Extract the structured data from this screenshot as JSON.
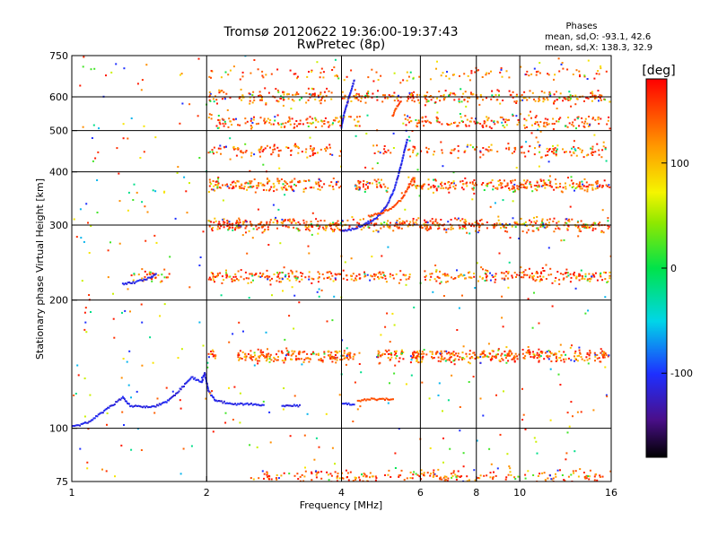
{
  "chart_data": {
    "type": "scatter",
    "title": "Tromsø 20120622 19:36:00-19:37:43",
    "subtitle": "RwPretec (8p)",
    "xlabel": "Frequency [MHz]",
    "ylabel": "Stationary phase Virtual Height [km]",
    "x_scale": "log",
    "y_scale": "log",
    "xlim": [
      1,
      16
    ],
    "ylim": [
      75,
      750
    ],
    "x_ticks": [
      1,
      2,
      4,
      6,
      8,
      10,
      16
    ],
    "x_tick_labels": [
      "1",
      "2",
      "4",
      "6",
      "8",
      "10",
      "16"
    ],
    "y_ticks": [
      75,
      100,
      200,
      300,
      400,
      500,
      600,
      750
    ],
    "y_tick_labels": [
      "75",
      "100",
      "200",
      "300",
      "400",
      "500",
      "600",
      "750"
    ],
    "grid": true,
    "legend": {
      "title": "Phases",
      "entries": [
        "mean, sd,O: -93.1, 42.6",
        "mean, sd,X: 138.3, 32.9"
      ],
      "placement": "top-right"
    },
    "colorbar": {
      "label": "[deg]",
      "range": [
        -180,
        180
      ],
      "ticks": [
        100,
        0,
        -100
      ],
      "tick_labels": [
        "100",
        "0",
        "-100"
      ],
      "colormap": "rainbow"
    },
    "traces": [
      {
        "desc": "O-mode E/F1 lower trace",
        "phase": -110,
        "points": [
          [
            1.0,
            101
          ],
          [
            1.05,
            102
          ],
          [
            1.1,
            104
          ],
          [
            1.3,
            118
          ],
          [
            1.35,
            113
          ],
          [
            1.45,
            112
          ],
          [
            1.55,
            113
          ],
          [
            1.62,
            115
          ],
          [
            1.7,
            120
          ],
          [
            1.78,
            126
          ],
          [
            1.85,
            132
          ],
          [
            1.95,
            128
          ],
          [
            1.98,
            135
          ],
          [
            2.02,
            122
          ],
          [
            2.1,
            116
          ],
          [
            2.3,
            114
          ],
          [
            2.5,
            114
          ],
          [
            2.7,
            113
          ]
        ]
      },
      {
        "desc": "O-mode short segment",
        "phase": -110,
        "points": [
          [
            2.95,
            113
          ],
          [
            3.05,
            113
          ],
          [
            3.25,
            113
          ]
        ]
      },
      {
        "desc": "O-mode segment near 4 MHz",
        "phase": -110,
        "points": [
          [
            4.02,
            114
          ],
          [
            4.15,
            114
          ],
          [
            4.3,
            114
          ]
        ]
      },
      {
        "desc": "X-mode segment near 4.5 MHz",
        "phase": 150,
        "points": [
          [
            4.35,
            116
          ],
          [
            4.6,
            117
          ],
          [
            4.9,
            117
          ],
          [
            5.25,
            117
          ]
        ]
      },
      {
        "desc": "O-mode F2 trace",
        "phase": -110,
        "points": [
          [
            4.0,
            290
          ],
          [
            4.2,
            293
          ],
          [
            4.4,
            298
          ],
          [
            4.7,
            307
          ],
          [
            4.9,
            320
          ],
          [
            5.1,
            340
          ],
          [
            5.25,
            365
          ],
          [
            5.35,
            390
          ],
          [
            5.45,
            420
          ],
          [
            5.55,
            455
          ],
          [
            5.62,
            480
          ]
        ]
      },
      {
        "desc": "O-mode high trace",
        "phase": -110,
        "points": [
          [
            4.0,
            510
          ],
          [
            4.05,
            545
          ],
          [
            4.12,
            580
          ],
          [
            4.2,
            620
          ],
          [
            4.28,
            660
          ]
        ]
      },
      {
        "desc": "X-mode F2 trace",
        "phase": 150,
        "points": [
          [
            4.6,
            315
          ],
          [
            4.9,
            320
          ],
          [
            5.2,
            330
          ],
          [
            5.45,
            345
          ],
          [
            5.65,
            368
          ],
          [
            5.8,
            390
          ]
        ]
      },
      {
        "desc": "X-mode high trace",
        "phase": 150,
        "points": [
          [
            5.2,
            540
          ],
          [
            5.3,
            565
          ],
          [
            5.45,
            590
          ]
        ]
      },
      {
        "desc": "O-mode low trace near 1.5 MHz",
        "phase": -110,
        "points": [
          [
            1.3,
            218
          ],
          [
            1.38,
            220
          ],
          [
            1.5,
            226
          ],
          [
            1.55,
            232
          ]
        ]
      }
    ],
    "bands": [
      {
        "height": 680,
        "fmin": 2.02,
        "fmax": 15.9,
        "gaps": [
          [
            4.15,
            4.45
          ],
          [
            5.0,
            5.55
          ]
        ],
        "density": 120,
        "phase": 160
      },
      {
        "height": 600,
        "fmin": 2.02,
        "fmax": 15.9,
        "gaps": [
          [
            3.85,
            4.0
          ]
        ],
        "density": 360,
        "phase": 160
      },
      {
        "height": 525,
        "fmin": 2.02,
        "fmax": 15.9,
        "gaps": [
          [
            4.45,
            5.5
          ]
        ],
        "density": 320,
        "phase": 160
      },
      {
        "height": 450,
        "fmin": 2.02,
        "fmax": 15.9,
        "gaps": [
          [
            4.0,
            4.6
          ],
          [
            5.2,
            5.6
          ]
        ],
        "density": 260,
        "phase": 160
      },
      {
        "height": 372,
        "fmin": 2.02,
        "fmax": 15.9,
        "gaps": [
          [
            4.0,
            4.3
          ],
          [
            5.1,
            5.6
          ]
        ],
        "density": 480,
        "phase": 160
      },
      {
        "height": 300,
        "fmin": 2.02,
        "fmax": 15.9,
        "gaps": [],
        "density": 520,
        "phase": 160
      },
      {
        "height": 228,
        "fmin": 1.35,
        "fmax": 15.9,
        "gaps": [
          [
            1.7,
            2.02
          ],
          [
            5.7,
            6.1
          ]
        ],
        "density": 460,
        "phase": 160
      },
      {
        "height": 148,
        "fmin": 2.02,
        "fmax": 15.9,
        "gaps": [
          [
            2.1,
            2.35
          ],
          [
            4.3,
            4.75
          ],
          [
            5.5,
            5.7
          ]
        ],
        "density": 640,
        "phase": 160
      },
      {
        "height": 77,
        "fmin": 2.5,
        "fmax": 15.9,
        "gaps": [],
        "density": 240,
        "phase": 160
      }
    ]
  }
}
